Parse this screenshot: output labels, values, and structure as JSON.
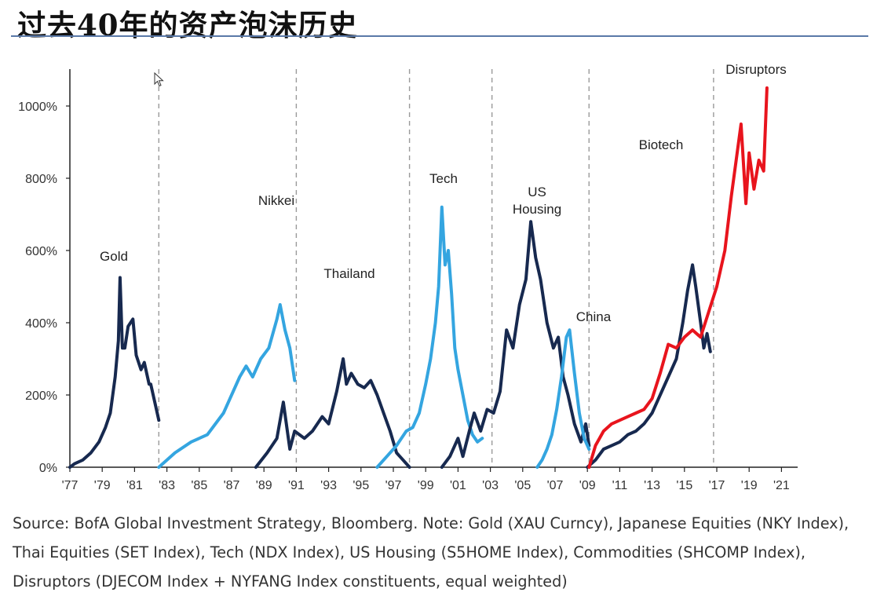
{
  "title": "过去40年的资产泡沫历史",
  "source_lines": [
    "Source: BofA Global Investment Strategy, Bloomberg. Note: Gold (XAU Curncy), Japanese Equities (NKY Index),",
    "Thai Equities (SET Index), Tech (NDX Index), US Housing (S5HOME Index), Commodities (SHCOMP Index),",
    "Disruptors (DJECOM Index + NYFANG Index constituents, equal weighted)"
  ],
  "chart_data": {
    "type": "line",
    "title": "",
    "xlabel": "",
    "ylabel": "",
    "xlim": [
      1977,
      2022
    ],
    "ylim": [
      0,
      1000
    ],
    "x_ticks": [
      1977,
      1979,
      1981,
      1983,
      1985,
      1987,
      1989,
      1991,
      1993,
      1995,
      1997,
      1999,
      2001,
      2003,
      2005,
      2007,
      2009,
      2011,
      2013,
      2015,
      2017,
      2019,
      2021
    ],
    "x_tick_labels": [
      "'77",
      "'79",
      "'81",
      "'83",
      "'85",
      "'87",
      "'89",
      "'91",
      "'93",
      "'95",
      "'97",
      "'99",
      "'01",
      "'03",
      "'05",
      "'07",
      "'09",
      "'11",
      "'13",
      "'15",
      "'17",
      "'19",
      "'21"
    ],
    "y_ticks": [
      0,
      200,
      400,
      600,
      800,
      1000
    ],
    "y_tick_labels": [
      "0%",
      "200%",
      "400%",
      "600%",
      "800%",
      "1000%"
    ],
    "dividers_x": [
      1982.5,
      1991.0,
      1998.0,
      2003.1,
      2009.1,
      2016.8
    ],
    "series": [
      {
        "name": "Gold",
        "label": "Gold",
        "color": "#17294f",
        "x": [
          1977.0,
          1977.3,
          1977.8,
          1978.3,
          1978.8,
          1979.2,
          1979.5,
          1979.8,
          1980.0,
          1980.1,
          1980.25,
          1980.4,
          1980.6,
          1980.9,
          1981.1,
          1981.4,
          1981.6,
          1981.9,
          1982.0,
          1982.3,
          1982.5
        ],
        "y": [
          0,
          10,
          20,
          40,
          70,
          110,
          150,
          250,
          350,
          525,
          330,
          330,
          390,
          410,
          310,
          270,
          290,
          230,
          230,
          170,
          130
        ]
      },
      {
        "name": "Nikkei",
        "label": "Nikkei",
        "color": "#34a5e0",
        "x": [
          1982.5,
          1983.5,
          1984.5,
          1985.5,
          1986.5,
          1987.0,
          1987.5,
          1987.9,
          1988.3,
          1988.8,
          1989.3,
          1989.8,
          1990.0,
          1990.3,
          1990.6,
          1990.9
        ],
        "y": [
          0,
          40,
          70,
          90,
          150,
          200,
          250,
          280,
          250,
          300,
          330,
          410,
          450,
          380,
          330,
          240
        ]
      },
      {
        "name": "Thailand",
        "label": "Thailand",
        "color": "#17294f",
        "x": [
          1988.5,
          1989.2,
          1989.8,
          1990.2,
          1990.6,
          1990.9,
          1991.5,
          1992.0,
          1992.6,
          1993.0,
          1993.5,
          1993.9,
          1994.1,
          1994.4,
          1994.8,
          1995.2,
          1995.6,
          1996.0,
          1996.4,
          1996.8,
          1997.2,
          1997.6,
          1998.0
        ],
        "y": [
          0,
          40,
          80,
          180,
          50,
          100,
          80,
          100,
          140,
          120,
          210,
          300,
          230,
          260,
          230,
          220,
          240,
          200,
          150,
          100,
          40,
          20,
          0
        ]
      },
      {
        "name": "Tech",
        "label": "Tech",
        "color": "#34a5e0",
        "x": [
          1996.0,
          1996.6,
          1997.2,
          1997.8,
          1998.2,
          1998.6,
          1999.0,
          1999.3,
          1999.6,
          1999.8,
          2000.0,
          2000.2,
          2000.4,
          2000.6,
          2000.8,
          2001.0,
          2001.3,
          2001.6,
          2001.9,
          2002.2,
          2002.5
        ],
        "y": [
          0,
          30,
          60,
          100,
          110,
          150,
          230,
          300,
          400,
          500,
          720,
          560,
          600,
          480,
          330,
          270,
          200,
          130,
          90,
          70,
          80
        ]
      },
      {
        "name": "US Housing",
        "label": "US\nHousing",
        "color": "#17294f",
        "x": [
          2000.0,
          2000.5,
          2001.0,
          2001.3,
          2001.7,
          2002.0,
          2002.4,
          2002.8,
          2003.2,
          2003.6,
          2004.0,
          2004.4,
          2004.8,
          2005.2,
          2005.5,
          2005.8,
          2006.1,
          2006.5,
          2006.9,
          2007.2,
          2007.5,
          2007.8,
          2008.2,
          2008.6,
          2008.9,
          2009.1
        ],
        "y": [
          0,
          30,
          80,
          30,
          100,
          150,
          100,
          160,
          150,
          210,
          380,
          330,
          450,
          520,
          680,
          580,
          520,
          400,
          330,
          360,
          250,
          200,
          120,
          70,
          120,
          60
        ]
      },
      {
        "name": "China",
        "label": "China",
        "color": "#34a5e0",
        "x": [
          2005.9,
          2006.2,
          2006.5,
          2006.8,
          2007.1,
          2007.4,
          2007.7,
          2007.9,
          2008.2,
          2008.5,
          2008.8,
          2009.1
        ],
        "y": [
          0,
          20,
          50,
          90,
          160,
          250,
          360,
          380,
          260,
          150,
          80,
          50
        ]
      },
      {
        "name": "Biotech",
        "label": "Biotech",
        "color": "#17294f",
        "x": [
          2009.0,
          2009.5,
          2010.0,
          2010.5,
          2011.0,
          2011.5,
          2012.0,
          2012.5,
          2013.0,
          2013.5,
          2014.0,
          2014.5,
          2014.9,
          2015.2,
          2015.5,
          2015.7,
          2016.0,
          2016.2,
          2016.4,
          2016.6
        ],
        "y": [
          0,
          20,
          50,
          60,
          70,
          90,
          100,
          120,
          150,
          200,
          250,
          300,
          400,
          490,
          560,
          500,
          400,
          330,
          370,
          320
        ]
      },
      {
        "name": "Disruptors",
        "label": "Disruptors",
        "color": "#e8141d",
        "x": [
          2009.1,
          2009.5,
          2010.0,
          2010.5,
          2011.0,
          2011.5,
          2012.0,
          2012.5,
          2013.0,
          2013.5,
          2014.0,
          2014.5,
          2015.0,
          2015.5,
          2016.0,
          2016.5,
          2017.0,
          2017.5,
          2017.9,
          2018.2,
          2018.5,
          2018.8,
          2019.0,
          2019.3,
          2019.6,
          2019.9,
          2020.1
        ],
        "y": [
          0,
          60,
          100,
          120,
          130,
          140,
          150,
          160,
          190,
          260,
          340,
          330,
          360,
          380,
          360,
          430,
          500,
          600,
          750,
          850,
          950,
          730,
          870,
          770,
          850,
          820,
          1050
        ]
      }
    ]
  }
}
